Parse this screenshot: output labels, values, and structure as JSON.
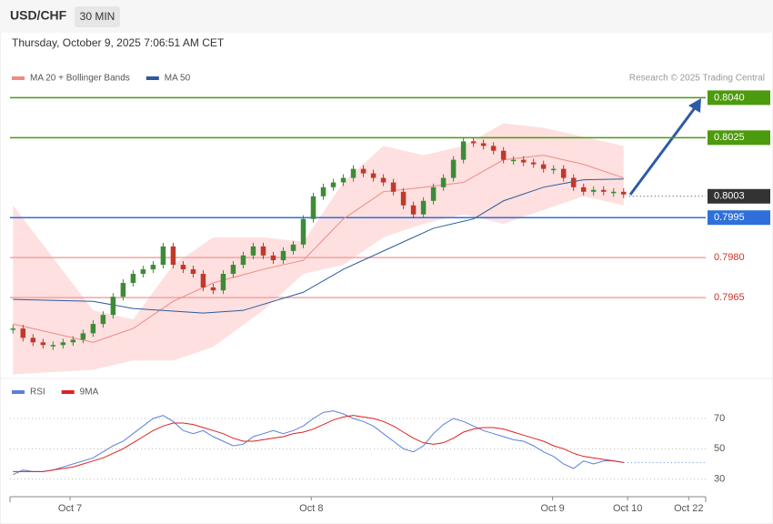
{
  "header": {
    "symbol": "USD/CHF",
    "timeframe": "30 MIN",
    "datetime": "Thursday, October 9, 2025 7:06:51 AM CET",
    "source": "Research © 2025 Trading Central"
  },
  "chart_data": [
    {
      "type": "candlestick",
      "x": [
        0,
        1,
        2,
        3,
        4,
        5,
        6,
        7,
        8,
        9,
        10,
        11,
        12,
        13,
        14,
        15,
        16,
        17,
        18,
        19,
        20,
        21,
        22,
        23,
        24,
        25,
        26,
        27,
        28,
        29,
        30,
        31,
        32,
        33,
        34,
        35,
        36,
        37,
        38,
        39,
        40,
        41,
        42,
        43,
        44,
        45,
        46,
        47,
        48,
        49,
        50,
        51,
        52,
        53,
        54,
        55,
        56,
        57,
        58,
        59,
        60,
        61
      ],
      "closes": [
        0.79534,
        0.79499,
        0.79482,
        0.79472,
        0.79472,
        0.79482,
        0.79492,
        0.79516,
        0.79551,
        0.79585,
        0.79653,
        0.79705,
        0.79739,
        0.79756,
        0.79773,
        0.79842,
        0.79773,
        0.79756,
        0.79739,
        0.79688,
        0.79677,
        0.79739,
        0.79773,
        0.79808,
        0.79842,
        0.79808,
        0.7979,
        0.79825,
        0.79849,
        0.79945,
        0.8003,
        0.80064,
        0.80082,
        0.80099,
        0.80133,
        0.80116,
        0.80099,
        0.80082,
        0.80047,
        0.79996,
        0.79962,
        0.80013,
        0.80064,
        0.80099,
        0.80167,
        0.80236,
        0.80229,
        0.80219,
        0.80201,
        0.80167,
        0.80167,
        0.80157,
        0.8015,
        0.80133,
        0.80133,
        0.80099,
        0.80064,
        0.80047,
        0.80054,
        0.80047,
        0.80047,
        0.80037
      ],
      "up_color": "#3d8b37",
      "down_color": "#c0392b",
      "series": [
        {
          "name": "MA 20 + Bollinger Bands",
          "color": "#f08a84",
          "band_color": "#fde0df",
          "x": [
            0,
            8,
            12,
            16,
            20,
            25,
            29,
            33,
            37,
            41,
            45,
            49,
            53,
            57,
            61
          ],
          "values": [
            0.79551,
            0.79482,
            0.79534,
            0.79636,
            0.79705,
            0.79756,
            0.7979,
            0.79945,
            0.80047,
            0.80064,
            0.80082,
            0.80167,
            0.80184,
            0.8015,
            0.80099
          ],
          "upper": [
            0.79996,
            0.79602,
            0.79568,
            0.79773,
            0.79876,
            0.79876,
            0.79859,
            0.80082,
            0.80219,
            0.80184,
            0.80219,
            0.80304,
            0.80287,
            0.80253,
            0.80219
          ],
          "lower": [
            0.79362,
            0.79379,
            0.79414,
            0.79414,
            0.79465,
            0.79602,
            0.79739,
            0.79773,
            0.79876,
            0.79927,
            0.79962,
            0.79927,
            0.79979,
            0.8003,
            0.79996
          ]
        },
        {
          "name": "MA 50",
          "color": "#2c5a9e",
          "x": [
            0,
            8,
            12,
            19,
            23,
            29,
            33,
            39,
            42,
            46,
            49,
            53,
            57,
            61
          ],
          "values": [
            0.79643,
            0.79636,
            0.79609,
            0.79592,
            0.79602,
            0.7967,
            0.79756,
            0.79859,
            0.7991,
            0.79945,
            0.80013,
            0.80064,
            0.80092,
            0.80095
          ]
        }
      ],
      "levels": [
        {
          "value": 0.804,
          "label": "0.8040",
          "color": "#4c9a0e",
          "style": "solid",
          "filled": true
        },
        {
          "value": 0.8025,
          "label": "0.8025",
          "color": "#4c9a0e",
          "style": "solid",
          "filled": true
        },
        {
          "value": 0.8003,
          "label": "0.8003",
          "color": "#333333",
          "style": "dotted",
          "filled": true
        },
        {
          "value": 0.7995,
          "label": "0.7995",
          "color": "#2f6fdc",
          "style": "solid",
          "filled": true
        },
        {
          "value": 0.798,
          "label": "0.7980",
          "color": "#f4a3a3",
          "style": "solid",
          "filled": false
        },
        {
          "value": 0.7965,
          "label": "0.7965",
          "color": "#f4a3a3",
          "style": "solid",
          "filled": false
        }
      ],
      "xlim": [
        -0.3,
        69.2
      ],
      "ylim": [
        0.7935,
        0.8063
      ]
    },
    {
      "type": "line",
      "series": [
        {
          "name": "RSI",
          "color": "#5b7fdb",
          "values": [
            33,
            36,
            35,
            35,
            36,
            38,
            40,
            42,
            44,
            48,
            52,
            55,
            60,
            65,
            70,
            72,
            68,
            62,
            60,
            62,
            58,
            55,
            52,
            53,
            58,
            60,
            62,
            60,
            62,
            65,
            70,
            74,
            75,
            73,
            70,
            68,
            65,
            60,
            55,
            50,
            48,
            52,
            60,
            66,
            70,
            68,
            65,
            62,
            60,
            58,
            56,
            55,
            52,
            48,
            45,
            40,
            37,
            42,
            40,
            42,
            42,
            41
          ]
        },
        {
          "name": "9MA",
          "color": "#e02020",
          "values": [
            35,
            35,
            35,
            35,
            36,
            37,
            38,
            40,
            42,
            44,
            47,
            50,
            54,
            58,
            62,
            65,
            67,
            67,
            66,
            64,
            62,
            60,
            57,
            55,
            55,
            56,
            57,
            58,
            60,
            61,
            63,
            66,
            69,
            71,
            72,
            71,
            70,
            68,
            65,
            61,
            57,
            54,
            53,
            54,
            57,
            61,
            63,
            64,
            64,
            63,
            61,
            59,
            57,
            55,
            52,
            50,
            47,
            45,
            44,
            43,
            42,
            41
          ]
        }
      ],
      "xlim": [
        -0.3,
        69.2
      ],
      "xticks": [
        {
          "value": 5.7,
          "label": "Oct 7"
        },
        {
          "value": 29.8,
          "label": "Oct 8"
        },
        {
          "value": 53.9,
          "label": "Oct 9"
        },
        {
          "value": 61.4,
          "label": "Oct 10"
        },
        {
          "value": 67.5,
          "label": "Oct 22"
        }
      ],
      "ylim": [
        19,
        82
      ],
      "yticks": [
        30,
        50,
        70
      ],
      "grid": true
    }
  ]
}
